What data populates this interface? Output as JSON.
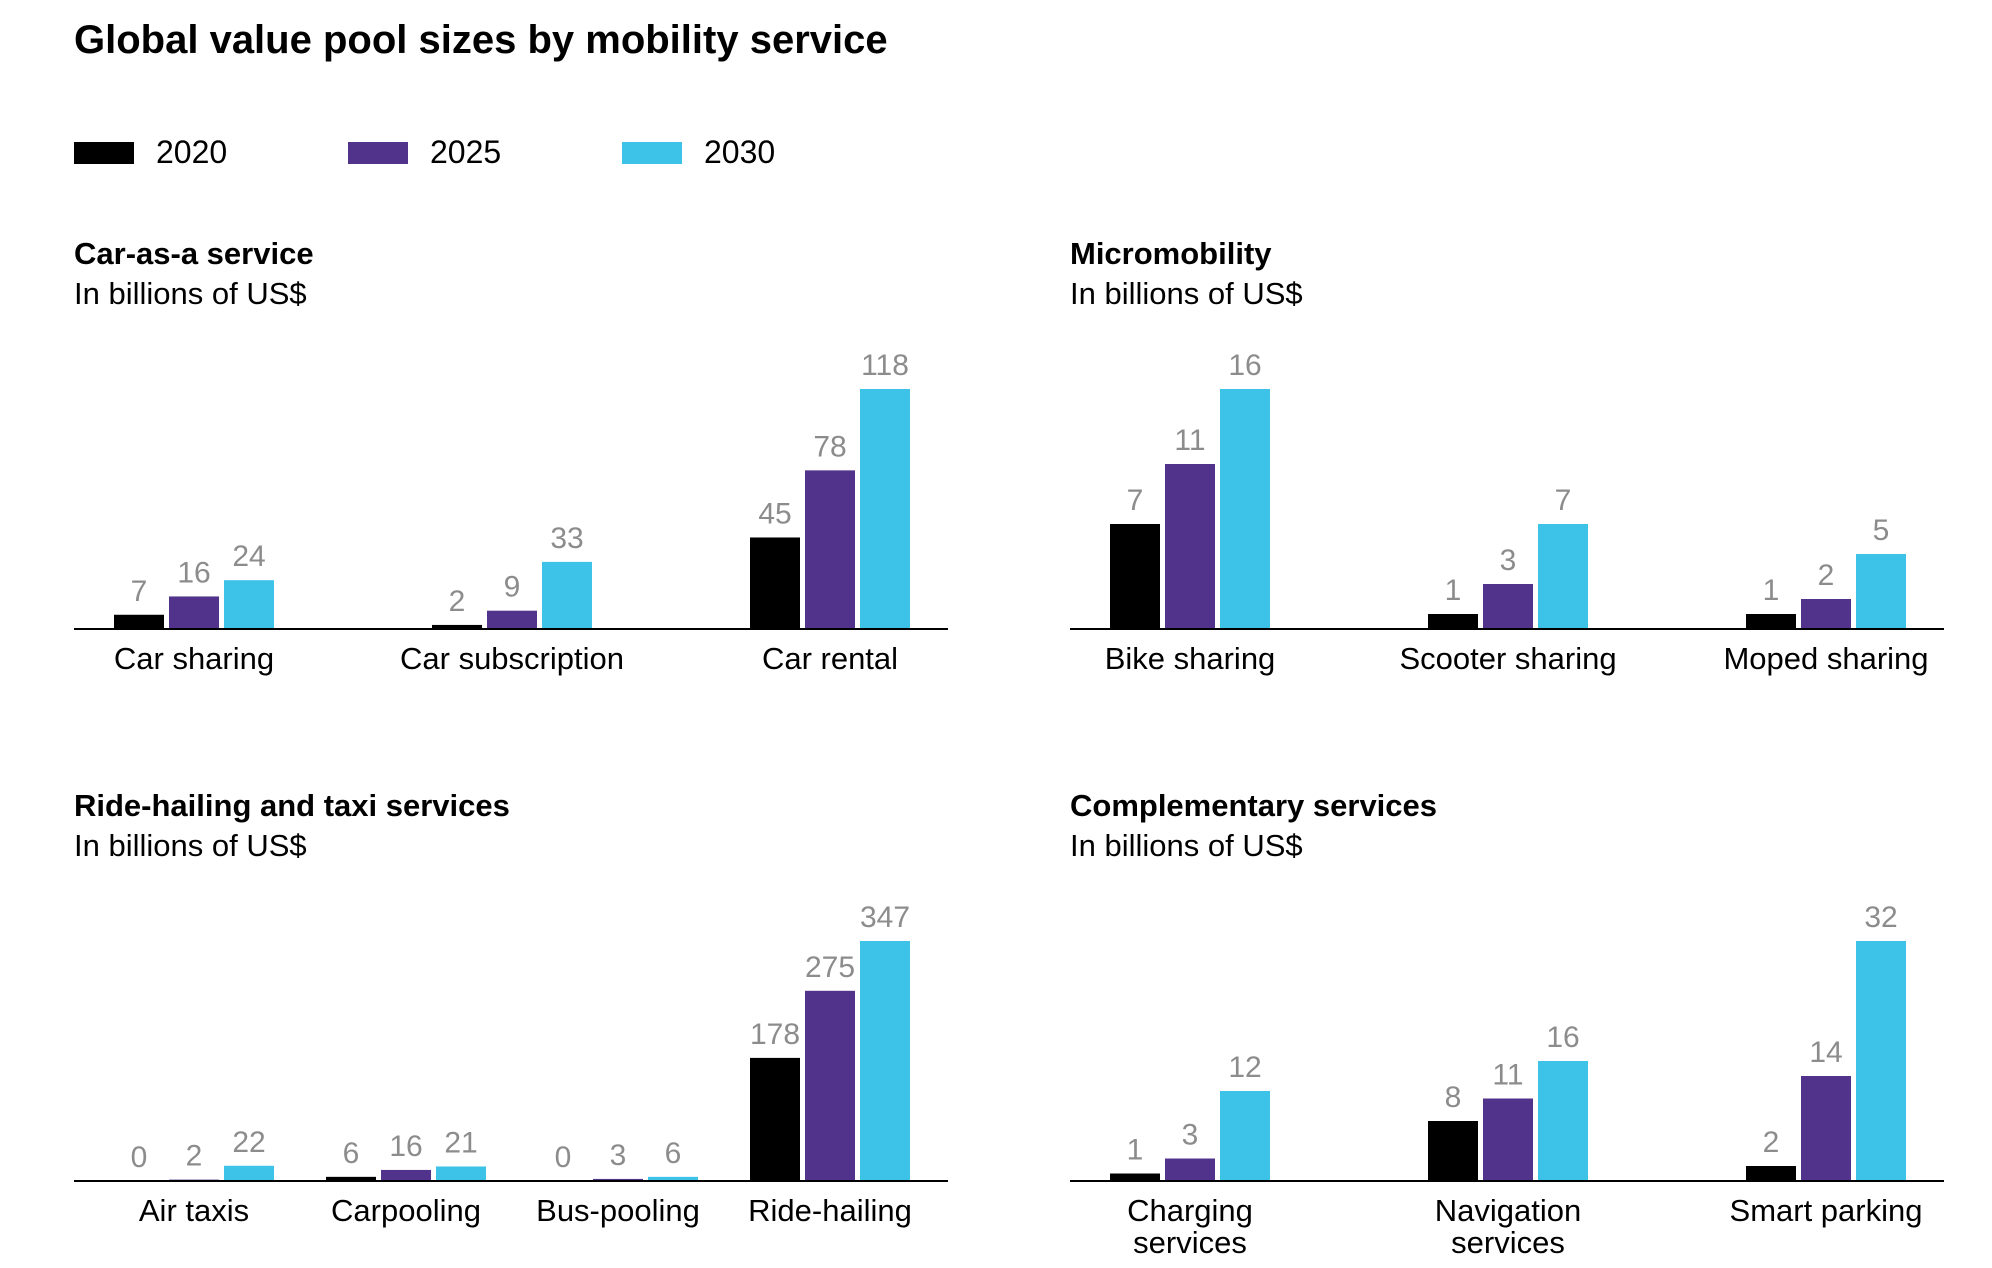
{
  "title": "Global value pool sizes by mobility service",
  "legend": [
    {
      "label": "2020",
      "color": "#000000"
    },
    {
      "label": "2025",
      "color": "#51338c"
    },
    {
      "label": "2030",
      "color": "#3ec3e8"
    }
  ],
  "colors": {
    "value_label": "#8c8c8c",
    "axis_line": "#000000"
  },
  "chart_data": [
    {
      "type": "bar",
      "title": "Car-as-a service",
      "subtitle": "In billions of US$",
      "categories": [
        "Car sharing",
        "Car subscription",
        "Car rental"
      ],
      "series": [
        {
          "name": "2020",
          "values": [
            7,
            2,
            45
          ]
        },
        {
          "name": "2025",
          "values": [
            16,
            9,
            78
          ]
        },
        {
          "name": "2030",
          "values": [
            24,
            33,
            118
          ]
        }
      ]
    },
    {
      "type": "bar",
      "title": "Micromobility",
      "subtitle": "In billions of US$",
      "categories": [
        "Bike sharing",
        "Scooter sharing",
        "Moped sharing"
      ],
      "series": [
        {
          "name": "2020",
          "values": [
            7,
            1,
            1
          ]
        },
        {
          "name": "2025",
          "values": [
            11,
            3,
            2
          ]
        },
        {
          "name": "2030",
          "values": [
            16,
            7,
            5
          ]
        }
      ]
    },
    {
      "type": "bar",
      "title": "Ride-hailing and taxi services",
      "subtitle": "In billions of US$",
      "categories": [
        "Air taxis",
        "Carpooling",
        "Bus-pooling",
        "Ride-hailing"
      ],
      "series": [
        {
          "name": "2020",
          "values": [
            0,
            6,
            0,
            178
          ]
        },
        {
          "name": "2025",
          "values": [
            2,
            16,
            3,
            275
          ]
        },
        {
          "name": "2030",
          "values": [
            22,
            21,
            6,
            347
          ]
        }
      ]
    },
    {
      "type": "bar",
      "title": "Complementary services",
      "subtitle": "In billions of US$",
      "categories": [
        [
          "Charging",
          "services"
        ],
        [
          "Navigation",
          "services"
        ],
        "Smart parking"
      ],
      "series": [
        {
          "name": "2020",
          "values": [
            1,
            8,
            2
          ]
        },
        {
          "name": "2025",
          "values": [
            3,
            11,
            14
          ]
        },
        {
          "name": "2030",
          "values": [
            12,
            16,
            32
          ]
        }
      ]
    }
  ]
}
